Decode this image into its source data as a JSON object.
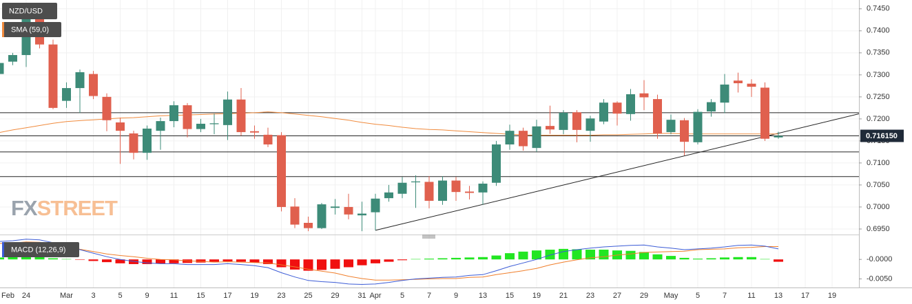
{
  "chart_data": [
    {
      "type": "candlestick",
      "symbol": "NZD/USD",
      "categories": [
        "Feb",
        null,
        "24",
        null,
        null,
        "Mar",
        null,
        "3",
        null,
        "5",
        null,
        "9",
        null,
        "11",
        null,
        "15",
        null,
        "17",
        null,
        "19",
        null,
        "23",
        null,
        "25",
        null,
        "29",
        null,
        "31",
        "Apr",
        null,
        "5",
        null,
        "7",
        null,
        "9",
        null,
        "13",
        null,
        "15",
        null,
        "19",
        null,
        "21",
        null,
        "23",
        null,
        "27",
        null,
        "29",
        null,
        "May",
        null,
        "5",
        null,
        "7",
        null,
        "11",
        null,
        "13",
        null,
        "17",
        null,
        "19"
      ],
      "open": [
        0.7302,
        0.733,
        0.7345,
        0.744,
        0.7369,
        0.7241,
        0.727,
        0.7302,
        0.725,
        0.7192,
        0.7167,
        0.7123,
        0.7173,
        0.7195,
        0.7231,
        0.7177,
        0.7188,
        0.7186,
        0.7244,
        0.7172,
        0.7164,
        0.7163,
        0.7001,
        0.6964,
        0.6952,
        0.6998,
        0.7,
        0.6981,
        0.6988,
        0.702,
        0.703,
        0.7056,
        0.7057,
        0.7014,
        0.706,
        0.7035,
        0.7033,
        0.7055,
        0.7142,
        0.7173,
        0.7134,
        0.7184,
        0.7175,
        0.7215,
        0.7173,
        0.7194,
        0.7237,
        0.7211,
        0.7258,
        0.7245,
        0.717,
        0.7197,
        0.7147,
        0.7217,
        0.7237,
        0.7287,
        0.728,
        0.7271,
        0.7158,
        null,
        null,
        null,
        null
      ],
      "high": [
        0.7335,
        0.735,
        0.7455,
        0.7463,
        0.738,
        0.7283,
        0.7312,
        0.7309,
        0.7258,
        0.7203,
        0.7173,
        0.7185,
        0.7203,
        0.724,
        0.7236,
        0.72,
        0.7212,
        0.7262,
        0.727,
        0.7185,
        0.718,
        0.717,
        0.702,
        0.6978,
        0.7009,
        0.7018,
        0.703,
        0.7012,
        0.703,
        0.705,
        0.7068,
        0.7072,
        0.707,
        0.707,
        0.7068,
        0.7048,
        0.7058,
        0.715,
        0.7187,
        0.718,
        0.7198,
        0.723,
        0.722,
        0.722,
        0.7207,
        0.7245,
        0.724,
        0.7268,
        0.7288,
        0.7255,
        0.721,
        0.7202,
        0.7222,
        0.7245,
        0.7302,
        0.7305,
        0.729,
        0.7283,
        0.7171,
        null,
        null,
        null,
        null
      ],
      "low": [
        0.7282,
        0.7322,
        0.7318,
        0.736,
        0.7222,
        0.7225,
        0.7213,
        0.7245,
        0.7172,
        0.7098,
        0.7108,
        0.7107,
        0.713,
        0.7181,
        0.7158,
        0.717,
        0.7165,
        0.7152,
        0.7162,
        0.7155,
        0.7136,
        0.699,
        0.6952,
        0.6945,
        0.695,
        0.6983,
        0.6972,
        0.6945,
        0.6947,
        0.7012,
        0.702,
        0.6998,
        0.6997,
        0.7005,
        0.7014,
        0.7017,
        0.7005,
        0.7048,
        0.713,
        0.7128,
        0.7125,
        0.7166,
        0.7165,
        0.7147,
        0.7148,
        0.7188,
        0.7185,
        0.7196,
        0.722,
        0.7155,
        0.7165,
        0.7117,
        0.7142,
        0.7205,
        0.7213,
        0.726,
        0.725,
        0.715,
        0.7155,
        null,
        null,
        null,
        null
      ],
      "close": [
        0.7327,
        0.7345,
        0.744,
        0.7369,
        0.7225,
        0.727,
        0.7306,
        0.7252,
        0.7197,
        0.7173,
        0.7123,
        0.7178,
        0.7195,
        0.7231,
        0.7177,
        0.7189,
        0.719,
        0.7244,
        0.717,
        0.7169,
        0.7142,
        0.7,
        0.696,
        0.6952,
        0.7006,
        0.7001,
        0.6983,
        0.6985,
        0.7019,
        0.7033,
        0.7055,
        0.7058,
        0.7014,
        0.706,
        0.7034,
        0.7032,
        0.7053,
        0.7142,
        0.7173,
        0.7138,
        0.7183,
        0.7176,
        0.7214,
        0.7175,
        0.7201,
        0.7237,
        0.7212,
        0.7256,
        0.7249,
        0.7167,
        0.7198,
        0.7148,
        0.7216,
        0.7238,
        0.7278,
        0.7281,
        0.7273,
        0.7155,
        0.71615,
        null,
        null,
        null,
        null
      ],
      "up_color": "#3d8b78",
      "down_color": "#e0604e",
      "series": [
        {
          "name": "SMA (59,0)",
          "color": "#f08a3c",
          "values": [
            0.7169,
            0.7175,
            0.718,
            0.7185,
            0.719,
            0.7194,
            0.7196,
            0.7198,
            0.72,
            0.7202,
            0.7203,
            0.7205,
            0.7207,
            0.7208,
            0.7209,
            0.721,
            0.7211,
            0.7212,
            0.7213,
            0.7214,
            0.7216,
            0.7214,
            0.7211,
            0.7208,
            0.7205,
            0.7201,
            0.7197,
            0.7192,
            0.7188,
            0.7185,
            0.7181,
            0.7178,
            0.7176,
            0.7175,
            0.7173,
            0.7171,
            0.7169,
            0.7167,
            0.7165,
            0.7164,
            0.7163,
            0.7163,
            0.7163,
            0.7163,
            0.7163,
            0.7164,
            0.7164,
            0.7165,
            0.7166,
            0.7167,
            0.7167,
            0.7166,
            0.7166,
            0.7166,
            0.7166,
            0.7166,
            0.7166,
            0.7166,
            0.7166,
            null,
            null,
            null,
            null
          ]
        }
      ],
      "hlines": [
        0.7214,
        0.7125,
        0.7069
      ],
      "trendline": {
        "from": 28,
        "to": 51,
        "values": [
          0.6947,
          0.7116
        ]
      },
      "last_price": {
        "value": 0.71615,
        "label": "0.716150"
      },
      "ylim": [
        0.6939,
        0.747
      ],
      "yticks": [
        {
          "value": 0.745,
          "label": "0.7450"
        },
        {
          "value": 0.74,
          "label": "0.7400"
        },
        {
          "value": 0.735,
          "label": "0.7350"
        },
        {
          "value": 0.73,
          "label": "0.7300"
        },
        {
          "value": 0.725,
          "label": "0.7250"
        },
        {
          "value": 0.72,
          "label": "0.7200"
        },
        {
          "value": 0.715,
          "label": "0.7150"
        },
        {
          "value": 0.71,
          "label": "0.7100"
        },
        {
          "value": 0.705,
          "label": "0.7050"
        },
        {
          "value": 0.7,
          "label": "0.7000"
        },
        {
          "value": 0.695,
          "label": "0.6950"
        }
      ],
      "grid": true,
      "watermark": [
        "FX",
        "STREET"
      ]
    },
    {
      "type": "macd",
      "title": "MACD (12,26,9)",
      "title_color": "#3b5bd6",
      "histogram": {
        "up_color": "#22e622",
        "down_color": "#f01010",
        "values": [
          0.0005,
          0.0006,
          0.0007,
          0.0006,
          0.0003,
          0.0001,
          -0.0001,
          -0.0004,
          -0.0007,
          -0.001,
          -0.0012,
          -0.0012,
          -0.0011,
          -0.001,
          -0.0009,
          -0.0008,
          -0.0006,
          -0.0005,
          -0.0006,
          -0.0008,
          -0.0012,
          -0.002,
          -0.0026,
          -0.0029,
          -0.0027,
          -0.0024,
          -0.002,
          -0.0015,
          -0.001,
          -0.0006,
          -0.0002,
          0.0001,
          0.0002,
          0.0003,
          0.0004,
          0.0005,
          0.0006,
          0.001,
          0.0016,
          0.002,
          0.0023,
          0.0025,
          0.0027,
          0.0026,
          0.0025,
          0.0025,
          0.0023,
          0.0022,
          0.0019,
          0.0013,
          0.0009,
          0.0004,
          0.0002,
          0.0003,
          0.0005,
          0.0006,
          0.0006,
          0.0001,
          -0.0006,
          null,
          null,
          null,
          null
        ]
      },
      "macd_line": {
        "color": "#3b5bd6",
        "values": [
          0.0046,
          0.0048,
          0.0052,
          0.005,
          0.0043,
          0.0034,
          0.0025,
          0.0016,
          0.0007,
          0,
          -0.0005,
          -0.0009,
          -0.0011,
          -0.0011,
          -0.0013,
          -0.0013,
          -0.0013,
          -0.0011,
          -0.0013,
          -0.0016,
          -0.0021,
          -0.0034,
          -0.0045,
          -0.0054,
          -0.0057,
          -0.0059,
          -0.0063,
          -0.0064,
          -0.0063,
          -0.0059,
          -0.0054,
          -0.005,
          -0.0048,
          -0.0046,
          -0.0045,
          -0.0041,
          -0.0039,
          -0.0029,
          -0.0018,
          -0.0009,
          0,
          0.0011,
          0.002,
          0.0025,
          0.0029,
          0.0032,
          0.0034,
          0.0036,
          0.0037,
          0.0032,
          0.0029,
          0.0025,
          0.0027,
          0.0029,
          0.0032,
          0.0036,
          0.0037,
          0.0034,
          0.0027,
          null,
          null,
          null,
          null
        ]
      },
      "signal_line": {
        "color": "#f07e2a",
        "values": [
          0.0041,
          0.0042,
          0.0045,
          0.0044,
          0.004,
          0.0033,
          0.0026,
          0.002,
          0.0014,
          0.001,
          0.0007,
          0.0003,
          0,
          -0.0001,
          -0.0004,
          -0.0005,
          -0.0007,
          -0.0006,
          -0.0007,
          -0.0008,
          -0.0009,
          -0.0014,
          -0.0019,
          -0.0025,
          -0.003,
          -0.0035,
          -0.0043,
          -0.0049,
          -0.0053,
          -0.0053,
          -0.0052,
          -0.0051,
          -0.005,
          -0.0049,
          -0.0049,
          -0.0046,
          -0.0045,
          -0.0039,
          -0.0034,
          -0.0029,
          -0.0023,
          -0.0014,
          -0.0007,
          -0.0001,
          0.0004,
          0.0007,
          0.0011,
          0.0014,
          0.0018,
          0.0019,
          0.002,
          0.0021,
          0.0025,
          0.0026,
          0.0027,
          0.003,
          0.0031,
          0.0033,
          0.0033,
          null,
          null,
          null,
          null
        ]
      },
      "ylim": [
        -0.0072,
        0.0055
      ],
      "yticks": [
        {
          "value": 0,
          "label": "-0.0000"
        },
        {
          "value": -0.005,
          "label": "-0.0050"
        }
      ]
    }
  ]
}
